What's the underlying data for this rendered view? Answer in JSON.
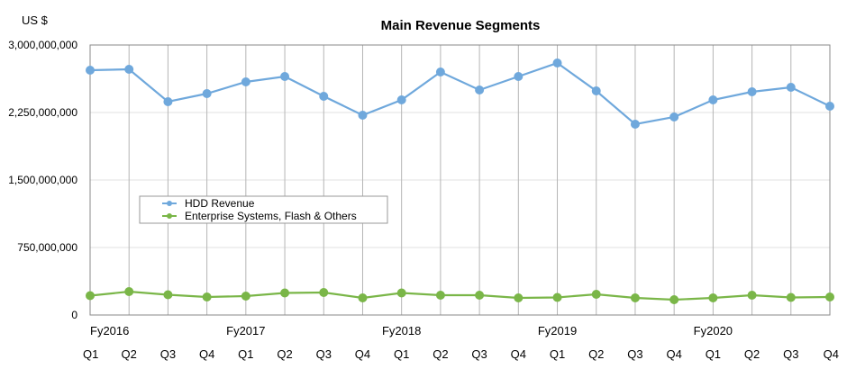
{
  "chart_data": {
    "type": "line",
    "title": "Main Revenue Segments",
    "ylabel": "US $",
    "ylim": [
      0,
      3000000000
    ],
    "yticks": [
      {
        "value": 0,
        "label": "0"
      },
      {
        "value": 750000000,
        "label": "750,000,000"
      },
      {
        "value": 1500000000,
        "label": "1,500,000,000"
      },
      {
        "value": 2250000000,
        "label": "2,250,000,000"
      },
      {
        "value": 3000000000,
        "label": "3,000,000,000"
      }
    ],
    "categories": [
      "Q1",
      "Q2",
      "Q3",
      "Q4",
      "Q1",
      "Q2",
      "Q3",
      "Q4",
      "Q1",
      "Q2",
      "Q3",
      "Q4",
      "Q1",
      "Q2",
      "Q3",
      "Q4",
      "Q1",
      "Q2",
      "Q3",
      "Q4"
    ],
    "years": [
      {
        "label": "Fy2016",
        "index": 0
      },
      {
        "label": "Fy2017",
        "index": 4
      },
      {
        "label": "Fy2018",
        "index": 8
      },
      {
        "label": "Fy2019",
        "index": 12
      },
      {
        "label": "Fy2020",
        "index": 16
      }
    ],
    "grid": true,
    "legend_position": "center-left",
    "series": [
      {
        "name": "HDD Revenue",
        "color": "#6fa8dc",
        "values": [
          2720000000,
          2730000000,
          2370000000,
          2460000000,
          2590000000,
          2650000000,
          2430000000,
          2220000000,
          2390000000,
          2700000000,
          2500000000,
          2650000000,
          2800000000,
          2490000000,
          2120000000,
          2200000000,
          2390000000,
          2480000000,
          2530000000,
          2320000000
        ]
      },
      {
        "name": "Enterprise Systems, Flash & Others",
        "color": "#7ab648",
        "values": [
          215000000,
          260000000,
          225000000,
          200000000,
          210000000,
          245000000,
          250000000,
          190000000,
          245000000,
          220000000,
          220000000,
          190000000,
          195000000,
          230000000,
          190000000,
          170000000,
          190000000,
          220000000,
          195000000,
          200000000
        ]
      }
    ]
  }
}
